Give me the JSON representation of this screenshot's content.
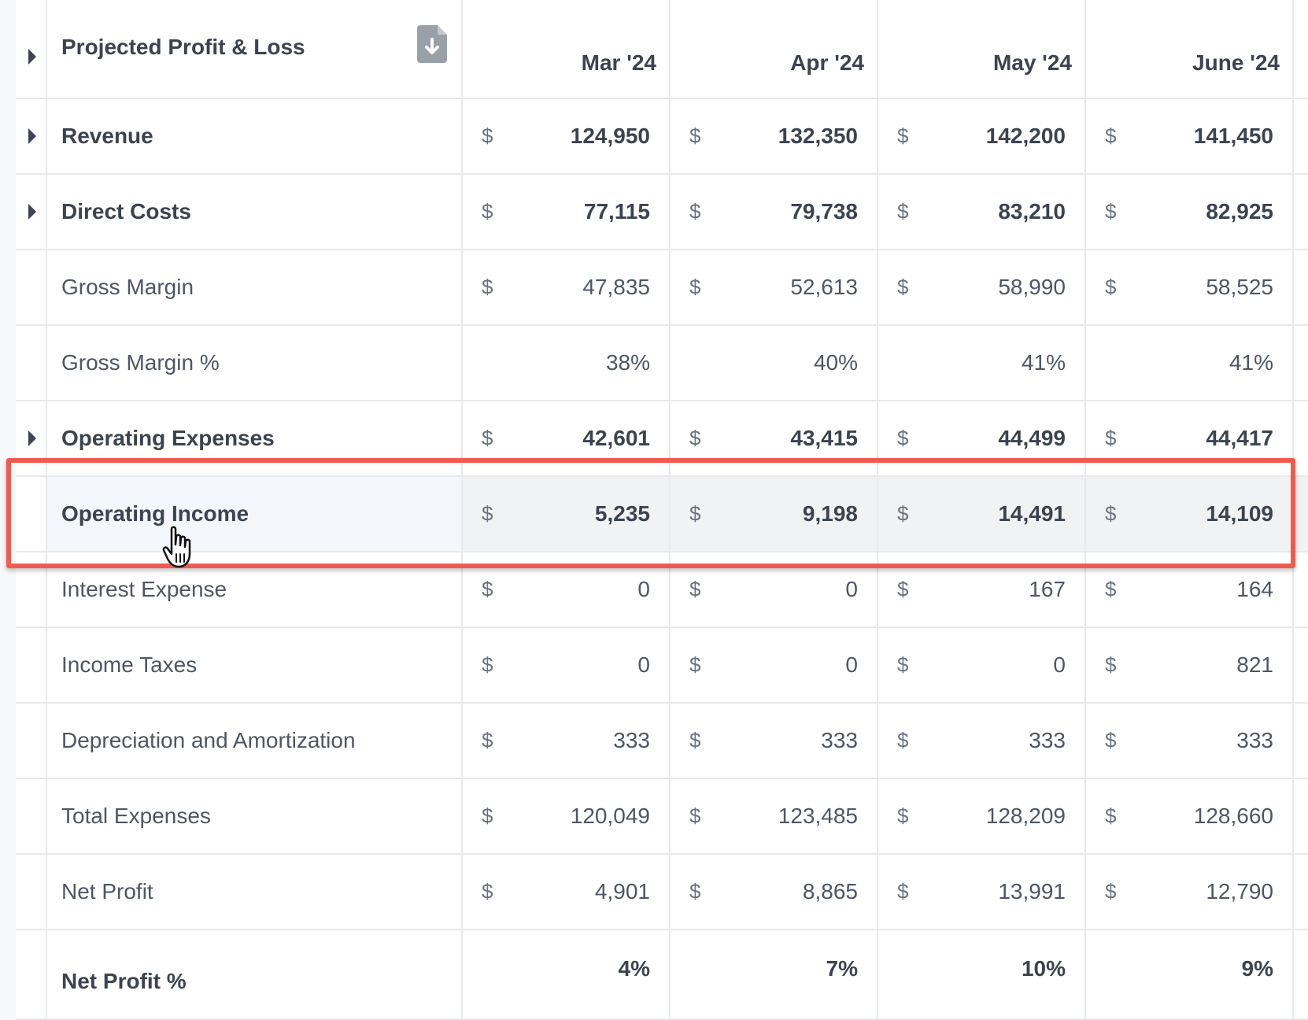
{
  "table": {
    "title": "Projected Profit & Loss",
    "months": [
      "Mar '24",
      "Apr '24",
      "May '24",
      "June '24"
    ],
    "currency_symbol": "$",
    "rows": [
      {
        "label": "Revenue",
        "values": [
          "124,950",
          "132,350",
          "142,200",
          "141,450"
        ]
      },
      {
        "label": "Direct Costs",
        "values": [
          "77,115",
          "79,738",
          "83,210",
          "82,925"
        ]
      },
      {
        "label": "Gross Margin",
        "values": [
          "47,835",
          "52,613",
          "58,990",
          "58,525"
        ]
      },
      {
        "label": "Gross Margin %",
        "values": [
          "38%",
          "40%",
          "41%",
          "41%"
        ]
      },
      {
        "label": "Operating Expenses",
        "values": [
          "42,601",
          "43,415",
          "44,499",
          "44,417"
        ]
      },
      {
        "label": "Operating Income",
        "values": [
          "5,235",
          "9,198",
          "14,491",
          "14,109"
        ]
      },
      {
        "label": "Interest Expense",
        "values": [
          "0",
          "0",
          "167",
          "164"
        ]
      },
      {
        "label": "Income Taxes",
        "values": [
          "0",
          "0",
          "0",
          "821"
        ]
      },
      {
        "label": "Depreciation and Amortization",
        "values": [
          "333",
          "333",
          "333",
          "333"
        ]
      },
      {
        "label": "Total Expenses",
        "values": [
          "120,049",
          "123,485",
          "128,209",
          "128,660"
        ]
      },
      {
        "label": "Net Profit",
        "values": [
          "4,901",
          "8,865",
          "13,991",
          "12,790"
        ]
      },
      {
        "label": "Net Profit %",
        "values": [
          "4%",
          "7%",
          "10%",
          "9%"
        ]
      }
    ]
  },
  "colors": {
    "highlight_border": "#f05a4f",
    "text_dark": "#3c4350",
    "grid_line": "#e7e9ec"
  },
  "icons": {
    "download": "file-download-icon",
    "cursor": "hand-pointer-cursor",
    "expand": "caret-right-icon"
  }
}
